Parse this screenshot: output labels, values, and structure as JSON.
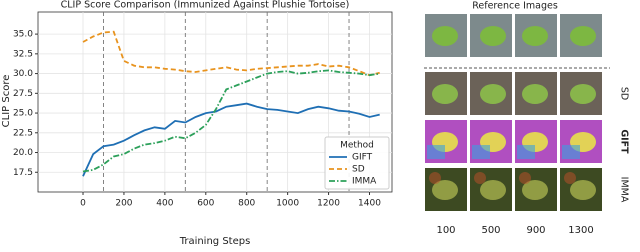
{
  "chart_data": {
    "type": "line",
    "title": "CLIP Score Comparison (Immunized Against Plushie Tortoise)",
    "xlabel": "Training Steps",
    "ylabel": "CLIP Score",
    "x": [
      0,
      50,
      100,
      150,
      200,
      250,
      300,
      350,
      400,
      450,
      500,
      550,
      600,
      650,
      700,
      750,
      800,
      850,
      900,
      950,
      1000,
      1050,
      1100,
      1150,
      1200,
      1250,
      1300,
      1350,
      1400,
      1450
    ],
    "series": [
      {
        "name": "GIFT",
        "color": "#1f6fb4",
        "linestyle": "solid",
        "values": [
          17.0,
          19.8,
          20.8,
          21.0,
          21.5,
          22.2,
          22.8,
          23.2,
          23.0,
          24.0,
          23.8,
          24.5,
          25.0,
          25.2,
          25.8,
          26.0,
          26.2,
          25.8,
          25.5,
          25.4,
          25.2,
          25.0,
          25.5,
          25.8,
          25.6,
          25.3,
          25.2,
          24.9,
          24.5,
          24.8
        ]
      },
      {
        "name": "SD",
        "color": "#e8931e",
        "linestyle": "dashed",
        "values": [
          34.0,
          34.7,
          35.2,
          35.3,
          31.6,
          31.0,
          30.8,
          30.8,
          30.6,
          30.5,
          30.3,
          30.2,
          30.4,
          30.6,
          30.8,
          30.5,
          30.4,
          30.6,
          30.7,
          30.8,
          30.9,
          31.0,
          31.0,
          31.2,
          30.9,
          31.0,
          30.8,
          30.3,
          29.8,
          30.1
        ]
      },
      {
        "name": "IMMA",
        "color": "#2ca05a",
        "linestyle": "dashdot",
        "values": [
          17.6,
          17.8,
          18.5,
          19.5,
          19.8,
          20.5,
          21.0,
          21.2,
          21.5,
          22.0,
          21.8,
          22.5,
          23.5,
          25.5,
          28.0,
          28.5,
          29.0,
          29.5,
          30.0,
          30.2,
          30.3,
          30.0,
          30.1,
          30.3,
          30.4,
          30.2,
          30.1,
          30.0,
          29.8,
          30.0
        ]
      }
    ],
    "xlim": [
      -220,
      1510
    ],
    "ylim": [
      15.0,
      37.8
    ],
    "xticks": [
      0,
      200,
      400,
      600,
      800,
      1000,
      1200,
      1400
    ],
    "yticks": [
      17.5,
      {
        "value": 20,
        "label": "20.0"
      },
      22.5,
      {
        "value": 25,
        "label": "25.0"
      },
      27.5,
      {
        "value": 30,
        "label": "30.0"
      },
      32.5,
      {
        "value": 35,
        "label": "35.0"
      }
    ],
    "vlines": [
      100,
      500,
      900,
      1300
    ],
    "grid": true,
    "legend_title": "Method",
    "legend": "lower right"
  },
  "panel": {
    "title": "Reference Images",
    "rows": [
      "SD",
      "GIFT",
      "IMMA"
    ],
    "columns": [
      "100",
      "500",
      "900",
      "1300"
    ]
  }
}
